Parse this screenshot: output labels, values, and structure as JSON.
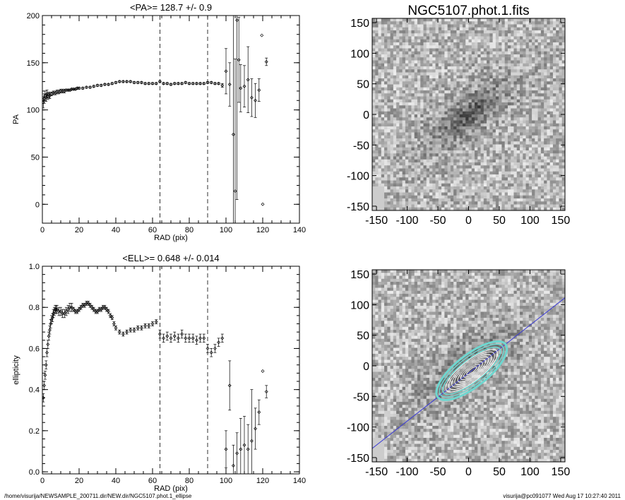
{
  "footer": {
    "left": "/home/visurija/NEWSAMPLE_200711.dir/NEW.dir/NGC5107.phot.1_ellipse",
    "right": "visurija@pc091077  Wed Aug 17 10:27:40 2011"
  },
  "colors": {
    "axis": "#000000",
    "ellipse_fit": "#6fd6cf",
    "ellipse_contour": "#ffffff",
    "pa_line": "#3b3bd6"
  },
  "images": {
    "top": {
      "title": "NGC5107.phot.1.fits",
      "xticks": [
        "-150",
        "-100",
        "-50",
        "0",
        "50",
        "100",
        "150"
      ],
      "yticks": [
        "150",
        "100",
        "50",
        "0",
        "-50",
        "-100",
        "-150"
      ],
      "range": [
        -157,
        157
      ]
    },
    "bottom": {
      "title": "",
      "xticks": [
        "-150",
        "-100",
        "-50",
        "0",
        "50",
        "100",
        "150"
      ],
      "yticks": [
        "150",
        "100",
        "50",
        "0",
        "-50",
        "-100",
        "-150"
      ],
      "range": [
        -157,
        157
      ],
      "pa_deg": 128.7,
      "ellipticity": 0.648
    }
  },
  "chart_data": [
    {
      "type": "scatter",
      "title": "<PA>= 128.7 +/-   0.9",
      "xlabel": "RAD (pix)",
      "ylabel": "PA",
      "xlim": [
        0,
        140
      ],
      "ylim": [
        -20,
        200
      ],
      "xticks": [
        "0",
        "20",
        "40",
        "60",
        "80",
        "100",
        "120",
        "140"
      ],
      "yticks": [
        "0",
        "50",
        "100",
        "150",
        "200"
      ],
      "vlines": [
        64,
        90
      ],
      "series": [
        {
          "x": [
            0.5,
            1,
            1.5,
            2,
            2.5,
            3,
            3.5,
            4,
            5,
            6,
            7,
            8,
            9,
            10,
            11,
            12,
            13,
            14,
            15,
            16,
            17,
            18,
            19,
            20,
            22,
            24,
            26,
            28,
            30,
            32,
            34,
            36,
            38,
            40,
            42,
            44,
            46,
            48,
            50,
            52,
            54,
            56,
            58,
            60,
            62,
            64,
            66,
            68,
            70,
            72,
            74,
            76,
            78,
            80,
            82,
            84,
            86,
            88,
            90,
            92,
            94,
            96,
            98
          ],
          "y": [
            108,
            112,
            115,
            113,
            117,
            114,
            116,
            115,
            117,
            118,
            118,
            119,
            119,
            120,
            120,
            120,
            121,
            121,
            121,
            122,
            122,
            122,
            123,
            123,
            123,
            124,
            124,
            125,
            126,
            126,
            127,
            127,
            128,
            129,
            130,
            130,
            130,
            130,
            129,
            129,
            129,
            128,
            128,
            128,
            128,
            130,
            128,
            128,
            127,
            128,
            128,
            128,
            129,
            128,
            128,
            128,
            128,
            128,
            129,
            129,
            128,
            128,
            126
          ],
          "err": [
            6,
            5,
            5,
            4,
            4,
            3,
            3,
            3,
            2,
            2,
            2,
            2,
            2,
            2,
            2,
            2,
            1,
            1,
            1,
            1,
            1,
            1,
            1,
            1,
            1,
            1,
            1,
            1,
            1,
            1,
            1,
            1,
            1,
            1,
            1,
            1,
            1,
            1,
            1,
            1,
            1,
            1,
            1,
            1,
            1,
            1,
            1,
            1,
            1,
            1,
            1,
            1,
            1,
            1,
            1,
            1,
            1,
            1,
            1,
            1,
            1,
            1,
            2
          ]
        },
        {
          "x": [
            100,
            102,
            104,
            105,
            106,
            107,
            108,
            110,
            112,
            114,
            116,
            118,
            120,
            122
          ],
          "y": [
            141,
            127,
            74,
            14,
            195,
            153,
            123,
            125,
            132,
            113,
            110,
            121,
            0,
            151
          ],
          "err": [
            24,
            23,
            130,
            140,
            190,
            45,
            25,
            22,
            35,
            20,
            18,
            12,
            0,
            4
          ]
        },
        {
          "x": [
            119.5
          ],
          "y": [
            179
          ],
          "err": [
            0
          ]
        }
      ]
    },
    {
      "type": "scatter",
      "title": "<ELL>= 0.648 +/-  0.014",
      "xlabel": "RAD (pix)",
      "ylabel": "ellipticity",
      "xlim": [
        0,
        140
      ],
      "ylim": [
        -0.01,
        1.0
      ],
      "xticks": [
        "0",
        "20",
        "40",
        "60",
        "80",
        "100",
        "120",
        "140"
      ],
      "yticks": [
        "0.0",
        "0.2",
        "0.4",
        "0.6",
        "0.8",
        "1.0"
      ],
      "vlines": [
        64,
        90
      ],
      "series": [
        {
          "x": [
            0.5,
            1,
            1.5,
            2,
            2.5,
            3,
            3.5,
            4,
            4.5,
            5,
            5.5,
            6,
            6.5,
            7,
            7.5,
            8,
            9,
            10,
            11,
            12,
            13,
            14,
            15,
            16,
            17,
            18,
            19,
            20,
            21,
            22,
            23,
            24,
            25,
            26,
            27,
            28,
            29,
            30,
            31,
            32,
            33,
            34,
            35,
            36,
            37,
            38,
            39,
            40,
            42,
            44,
            46,
            48,
            50,
            52,
            54,
            56,
            58,
            60,
            62
          ],
          "y": [
            0.36,
            0.42,
            0.47,
            0.52,
            0.58,
            0.62,
            0.66,
            0.69,
            0.72,
            0.74,
            0.75,
            0.77,
            0.78,
            0.79,
            0.79,
            0.79,
            0.78,
            0.78,
            0.77,
            0.77,
            0.78,
            0.79,
            0.8,
            0.8,
            0.79,
            0.78,
            0.78,
            0.79,
            0.8,
            0.81,
            0.81,
            0.82,
            0.82,
            0.81,
            0.8,
            0.79,
            0.78,
            0.78,
            0.79,
            0.79,
            0.8,
            0.8,
            0.79,
            0.78,
            0.76,
            0.75,
            0.72,
            0.7,
            0.68,
            0.67,
            0.68,
            0.69,
            0.69,
            0.7,
            0.7,
            0.71,
            0.71,
            0.72,
            0.73
          ],
          "err": [
            0.02,
            0.02,
            0.02,
            0.02,
            0.02,
            0.02,
            0.02,
            0.02,
            0.02,
            0.02,
            0.02,
            0.02,
            0.02,
            0.02,
            0.02,
            0.02,
            0.02,
            0.02,
            0.02,
            0.02,
            0.02,
            0.02,
            0.02,
            0.02,
            0.01,
            0.01,
            0.01,
            0.01,
            0.01,
            0.01,
            0.01,
            0.01,
            0.01,
            0.01,
            0.01,
            0.01,
            0.01,
            0.01,
            0.01,
            0.01,
            0.01,
            0.01,
            0.01,
            0.01,
            0.01,
            0.01,
            0.01,
            0.01,
            0.01,
            0.01,
            0.01,
            0.01,
            0.01,
            0.01,
            0.01,
            0.01,
            0.01,
            0.01,
            0.01
          ]
        },
        {
          "x": [
            64,
            66,
            68,
            70,
            72,
            74,
            76,
            78,
            80,
            82,
            84,
            86,
            88,
            90,
            92,
            94,
            96,
            98
          ],
          "y": [
            0.67,
            0.65,
            0.66,
            0.65,
            0.66,
            0.65,
            0.67,
            0.65,
            0.65,
            0.65,
            0.64,
            0.65,
            0.65,
            0.6,
            0.58,
            0.6,
            0.63,
            0.65
          ],
          "err": [
            0.02,
            0.02,
            0.02,
            0.02,
            0.02,
            0.02,
            0.02,
            0.02,
            0.02,
            0.02,
            0.02,
            0.02,
            0.02,
            0.02,
            0.02,
            0.02,
            0.02,
            0.02
          ]
        },
        {
          "x": [
            100,
            102,
            104,
            106,
            108,
            110,
            112,
            114,
            116,
            118,
            120,
            122
          ],
          "y": [
            0.11,
            0.42,
            0.03,
            0.09,
            0.11,
            0.13,
            0.11,
            0.15,
            0.21,
            0.29,
            0.49,
            0.39
          ],
          "err": [
            0.09,
            0.12,
            0.1,
            0.1,
            0.15,
            0.14,
            0.12,
            0.25,
            0.1,
            0.06,
            0.0,
            0.03
          ]
        }
      ]
    }
  ]
}
